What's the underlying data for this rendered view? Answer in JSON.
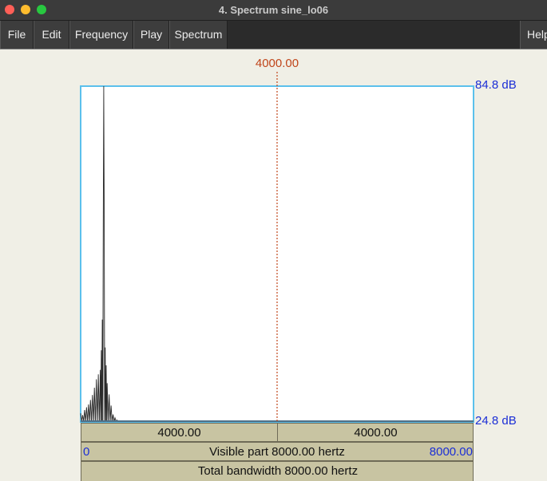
{
  "window": {
    "title": "4. Spectrum sine_lo06"
  },
  "menu": {
    "file": "File",
    "edit": "Edit",
    "frequency": "Frequency",
    "play": "Play",
    "spectrum": "Spectrum",
    "help": "Help"
  },
  "plot": {
    "cursor_frequency": "4000.00",
    "db_top": "84.8 dB",
    "db_bottom": "24.8 dB",
    "left_band_width": "4000.00",
    "right_band_width": "4000.00",
    "visible_start": "0",
    "visible_end": "8000.00",
    "visible_part_text": "Visible part 8000.00 hertz",
    "total_bandwidth_text": "Total bandwidth 8000.00 hertz"
  },
  "colors": {
    "plot_border": "#5bc0ec",
    "cursor": "#c0451a",
    "db_label": "#1b2ed6",
    "band": "#c8c4a2"
  },
  "chart_data": {
    "type": "line",
    "x_range": [
      0,
      8000
    ],
    "y_range": [
      24.8,
      84.8
    ],
    "x_unit": "hertz",
    "y_unit": "dB",
    "cursor_x": 4000,
    "peak": {
      "x": 470,
      "y": 84.8
    },
    "x": [
      0,
      20,
      40,
      60,
      80,
      100,
      120,
      140,
      160,
      180,
      200,
      220,
      240,
      260,
      280,
      300,
      320,
      340,
      360,
      380,
      400,
      410,
      420,
      430,
      440,
      450,
      460,
      470,
      480,
      490,
      500,
      510,
      520,
      530,
      540,
      560,
      580,
      600,
      620,
      640,
      660,
      680,
      700,
      720,
      740,
      760,
      780,
      800
    ],
    "values": [
      26.2,
      24.8,
      25.9,
      24.8,
      26.8,
      24.8,
      27.3,
      24.8,
      27.8,
      24.8,
      28.6,
      24.8,
      29.5,
      24.8,
      30.8,
      24.8,
      32.3,
      24.8,
      33.2,
      24.8,
      34.0,
      24.8,
      37.5,
      24.8,
      43.0,
      24.8,
      60.0,
      84.8,
      62.0,
      24.8,
      38.0,
      24.8,
      34.8,
      24.8,
      31.6,
      24.8,
      29.6,
      24.8,
      27.6,
      24.8,
      26.0,
      24.8,
      25.4,
      24.8,
      25.0,
      24.8,
      24.8,
      24.8
    ]
  }
}
